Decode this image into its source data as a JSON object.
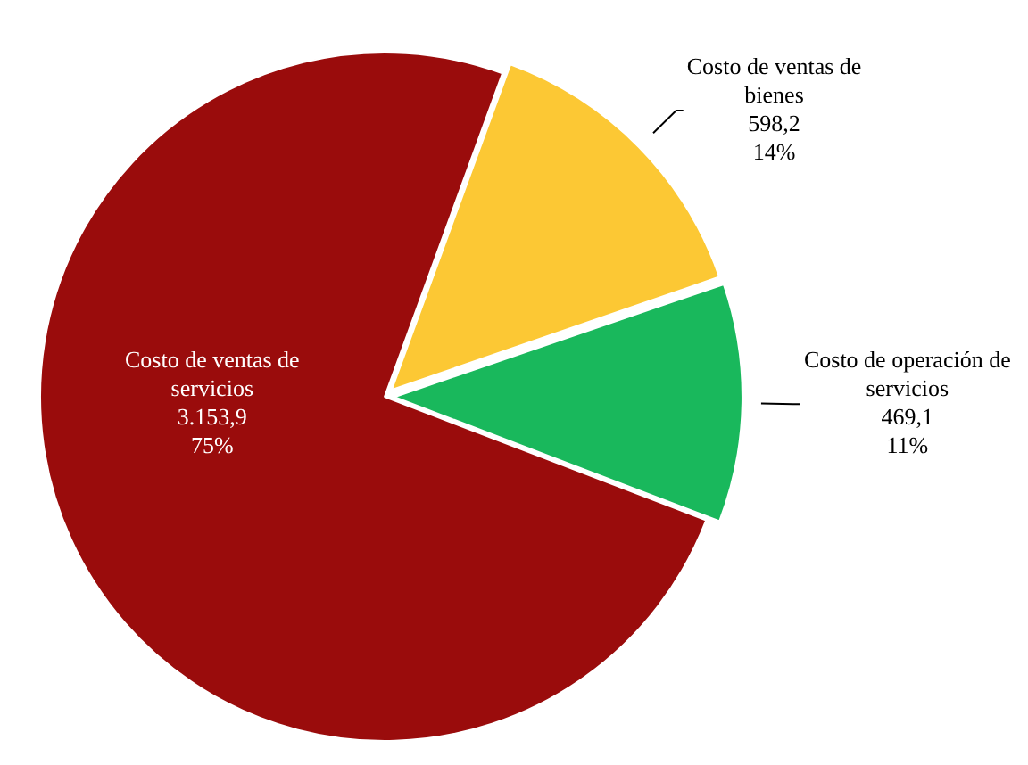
{
  "chart_data": {
    "type": "pie",
    "categories": [
      "Costo de ventas de bienes",
      "Costo de operación de servicios",
      "Costo de ventas de servicios"
    ],
    "values": [
      598.2,
      469.1,
      3153.9
    ],
    "colors": [
      "#fcc834",
      "#19b85c",
      "#9a0c0c"
    ],
    "value_labels": [
      "598,2\n14%",
      "469,1\n11%",
      "3.153,9\n75%"
    ],
    "legend": false
  }
}
